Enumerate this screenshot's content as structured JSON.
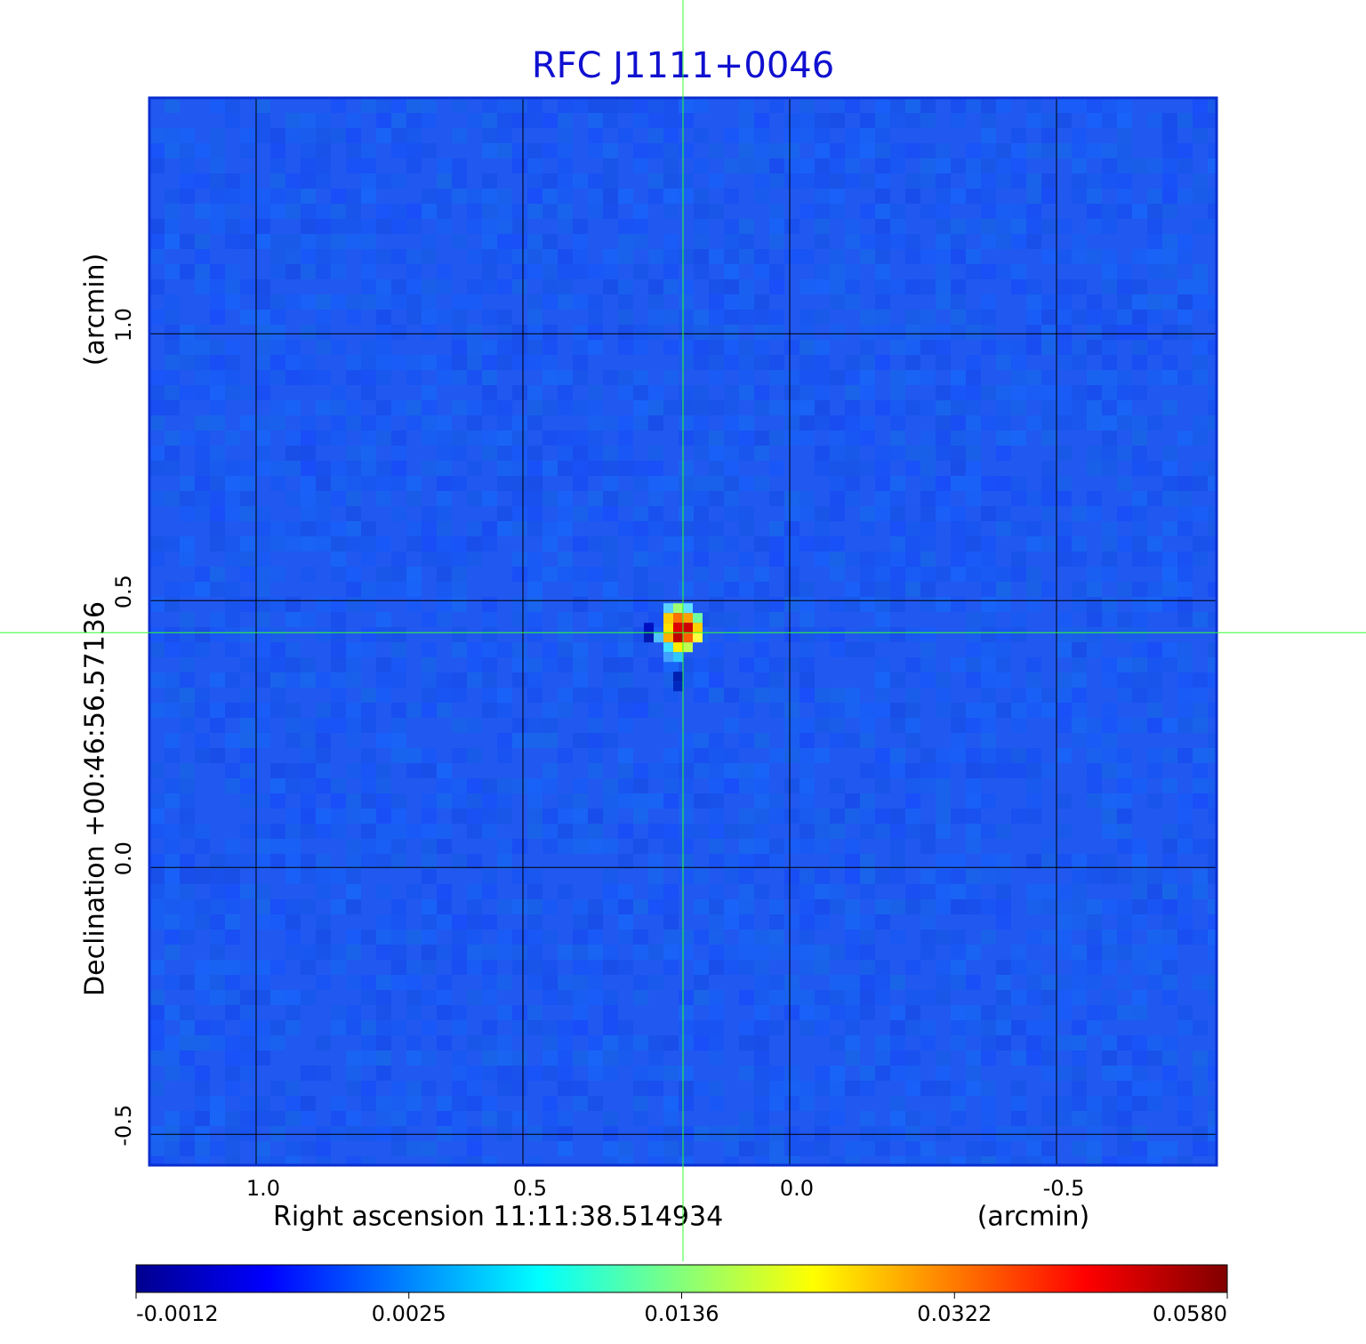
{
  "chart_data": {
    "type": "image",
    "title": "RFC J1111+0046",
    "x_label": "Right ascension  11:11:38.514934",
    "x_unit": "(arcmin)",
    "y_label": "Declination  +00:46:56.57136",
    "y_unit": "(arcmin)",
    "xlim": [
      1.2,
      -0.8
    ],
    "ylim": [
      -0.558,
      1.442
    ],
    "xticks": [
      {
        "value": 1,
        "label": "1.0"
      },
      0.5,
      {
        "value": 0,
        "label": "0.0"
      },
      -0.5
    ],
    "yticks": [
      -0.5,
      {
        "value": 0,
        "label": "0.0"
      },
      0.5,
      {
        "value": 1,
        "label": "1.0"
      }
    ],
    "grid": true,
    "crosshair": {
      "x": 0.2,
      "y": 0.44
    },
    "colorbar_ticks": [
      -0.0012,
      0.0025,
      0.0136,
      0.0322,
      {
        "value": 0.058,
        "label": "0.0580"
      }
    ]
  }
}
